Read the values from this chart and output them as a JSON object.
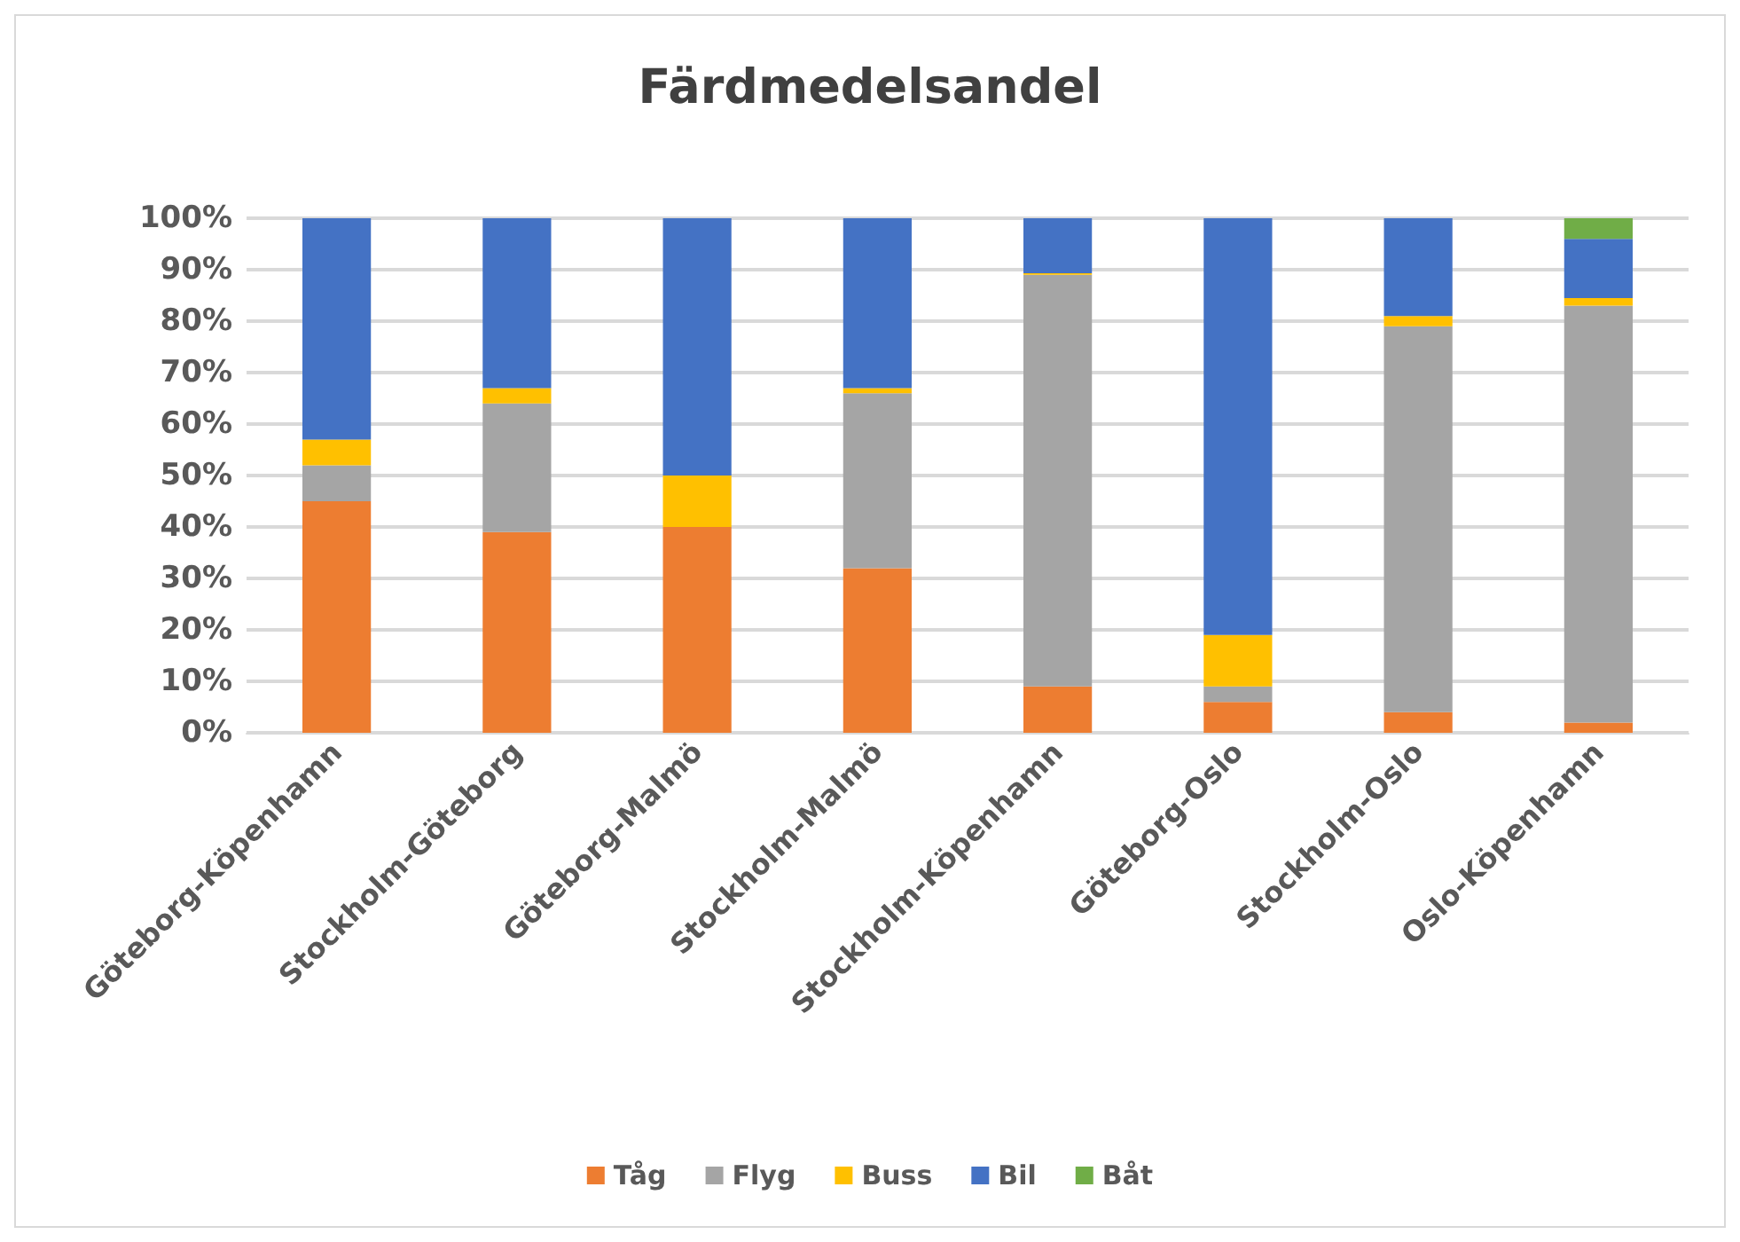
{
  "chart_data": {
    "type": "bar",
    "title": "Färdmedelsandel",
    "stacked": true,
    "categories": [
      "Göteborg-Köpenhamn",
      "Stockholm-Göteborg",
      "Göteborg-Malmö",
      "Stockholm-Malmö",
      "Stockholm-Köpenhamn",
      "Göteborg-Oslo",
      "Stockholm-Oslo",
      "Oslo-Köpenhamn"
    ],
    "series": [
      {
        "name": "Tåg",
        "color": "#ed7d31",
        "values": [
          45,
          39,
          40,
          32,
          9,
          6,
          4,
          2
        ]
      },
      {
        "name": "Flyg",
        "color": "#a5a5a5",
        "values": [
          7,
          25,
          0,
          34,
          80,
          3,
          75,
          81
        ]
      },
      {
        "name": "Buss",
        "color": "#ffc000",
        "values": [
          5,
          3,
          10,
          1,
          0.3,
          10,
          2,
          1.5
        ]
      },
      {
        "name": "Bil",
        "color": "#4472c4",
        "values": [
          43,
          33,
          50,
          33,
          10.7,
          81,
          19,
          11.5
        ]
      },
      {
        "name": "Båt",
        "color": "#70ad47",
        "values": [
          0,
          0,
          0,
          0,
          0,
          0,
          0,
          4
        ]
      }
    ],
    "ylim": [
      0,
      100
    ],
    "yticks": [
      {
        "value": 0,
        "label": "0%"
      },
      {
        "value": 10,
        "label": "10%"
      },
      {
        "value": 20,
        "label": "20%"
      },
      {
        "value": 30,
        "label": "30%"
      },
      {
        "value": 40,
        "label": "40%"
      },
      {
        "value": 50,
        "label": "50%"
      },
      {
        "value": 60,
        "label": "60%"
      },
      {
        "value": 70,
        "label": "70%"
      },
      {
        "value": 80,
        "label": "80%"
      },
      {
        "value": 90,
        "label": "90%"
      },
      {
        "value": 100,
        "label": "100%"
      }
    ],
    "grid": "y",
    "legend": "bottom"
  }
}
